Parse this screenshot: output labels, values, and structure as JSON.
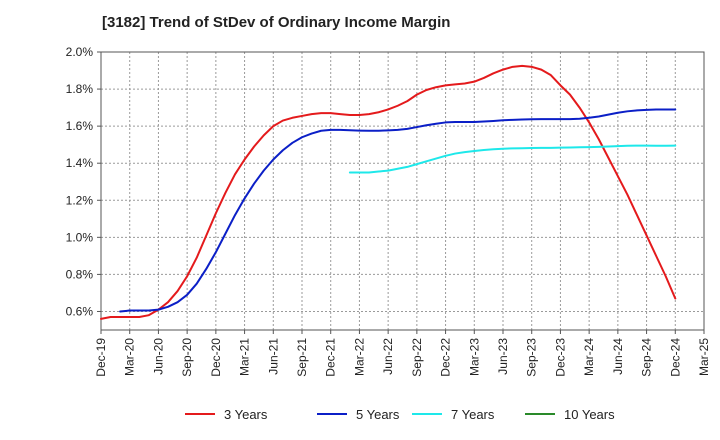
{
  "chart_data": {
    "type": "line",
    "title": "[3182]  Trend of StDev of Ordinary Income Margin",
    "xlabel": "",
    "ylabel": "",
    "x_ticks": [
      "Dec-19",
      "Mar-20",
      "Jun-20",
      "Sep-20",
      "Dec-20",
      "Mar-21",
      "Jun-21",
      "Sep-21",
      "Dec-21",
      "Mar-22",
      "Jun-22",
      "Sep-22",
      "Dec-22",
      "Mar-23",
      "Jun-23",
      "Sep-23",
      "Dec-23",
      "Mar-24",
      "Jun-24",
      "Sep-24",
      "Dec-24",
      "Mar-25"
    ],
    "y_ticks": [
      "0.6%",
      "0.8%",
      "1.0%",
      "1.2%",
      "1.4%",
      "1.6%",
      "1.8%",
      "2.0%"
    ],
    "ylim": [
      0.5,
      2.0
    ],
    "grid": true,
    "legend_position": "bottom",
    "series": [
      {
        "name": "3 Years",
        "color": "#e41a1c",
        "values": [
          [
            "Dec-19",
            0.56
          ],
          [
            "Jan-20",
            0.57
          ],
          [
            "Feb-20",
            0.57
          ],
          [
            "Mar-20",
            0.57
          ],
          [
            "Apr-20",
            0.57
          ],
          [
            "May-20",
            0.58
          ],
          [
            "Jun-20",
            0.61
          ],
          [
            "Jul-20",
            0.65
          ],
          [
            "Aug-20",
            0.71
          ],
          [
            "Sep-20",
            0.79
          ],
          [
            "Oct-20",
            0.89
          ],
          [
            "Nov-20",
            1.01
          ],
          [
            "Dec-20",
            1.13
          ],
          [
            "Jan-21",
            1.24
          ],
          [
            "Feb-21",
            1.34
          ],
          [
            "Mar-21",
            1.42
          ],
          [
            "Apr-21",
            1.49
          ],
          [
            "May-21",
            1.55
          ],
          [
            "Jun-21",
            1.6
          ],
          [
            "Jul-21",
            1.63
          ],
          [
            "Aug-21",
            1.645
          ],
          [
            "Sep-21",
            1.655
          ],
          [
            "Oct-21",
            1.665
          ],
          [
            "Nov-21",
            1.67
          ],
          [
            "Dec-21",
            1.67
          ],
          [
            "Jan-22",
            1.665
          ],
          [
            "Feb-22",
            1.66
          ],
          [
            "Mar-22",
            1.66
          ],
          [
            "Apr-22",
            1.665
          ],
          [
            "May-22",
            1.675
          ],
          [
            "Jun-22",
            1.69
          ],
          [
            "Jul-22",
            1.71
          ],
          [
            "Aug-22",
            1.735
          ],
          [
            "Sep-22",
            1.77
          ],
          [
            "Oct-22",
            1.795
          ],
          [
            "Nov-22",
            1.81
          ],
          [
            "Dec-22",
            1.82
          ],
          [
            "Jan-23",
            1.825
          ],
          [
            "Feb-23",
            1.83
          ],
          [
            "Mar-23",
            1.84
          ],
          [
            "Apr-23",
            1.86
          ],
          [
            "May-23",
            1.885
          ],
          [
            "Jun-23",
            1.905
          ],
          [
            "Jul-23",
            1.92
          ],
          [
            "Aug-23",
            1.925
          ],
          [
            "Sep-23",
            1.92
          ],
          [
            "Oct-23",
            1.905
          ],
          [
            "Nov-23",
            1.875
          ],
          [
            "Dec-23",
            1.82
          ],
          [
            "Jan-24",
            1.77
          ],
          [
            "Feb-24",
            1.7
          ],
          [
            "Mar-24",
            1.62
          ],
          [
            "Apr-24",
            1.53
          ],
          [
            "May-24",
            1.43
          ],
          [
            "Jun-24",
            1.33
          ],
          [
            "Jul-24",
            1.23
          ],
          [
            "Aug-24",
            1.12
          ],
          [
            "Sep-24",
            1.01
          ],
          [
            "Oct-24",
            0.9
          ],
          [
            "Nov-24",
            0.79
          ],
          [
            "Dec-24",
            0.67
          ]
        ]
      },
      {
        "name": "5 Years",
        "color": "#0b1fc7",
        "values": [
          [
            "Feb-20",
            0.6
          ],
          [
            "Mar-20",
            0.605
          ],
          [
            "Apr-20",
            0.605
          ],
          [
            "May-20",
            0.605
          ],
          [
            "Jun-20",
            0.61
          ],
          [
            "Jul-20",
            0.625
          ],
          [
            "Aug-20",
            0.65
          ],
          [
            "Sep-20",
            0.69
          ],
          [
            "Oct-20",
            0.75
          ],
          [
            "Nov-20",
            0.83
          ],
          [
            "Dec-20",
            0.92
          ],
          [
            "Jan-21",
            1.02
          ],
          [
            "Feb-21",
            1.12
          ],
          [
            "Mar-21",
            1.21
          ],
          [
            "Apr-21",
            1.29
          ],
          [
            "May-21",
            1.36
          ],
          [
            "Jun-21",
            1.42
          ],
          [
            "Jul-21",
            1.47
          ],
          [
            "Aug-21",
            1.51
          ],
          [
            "Sep-21",
            1.54
          ],
          [
            "Oct-21",
            1.56
          ],
          [
            "Nov-21",
            1.575
          ],
          [
            "Dec-21",
            1.58
          ],
          [
            "Jan-22",
            1.58
          ],
          [
            "Feb-22",
            1.578
          ],
          [
            "Mar-22",
            1.576
          ],
          [
            "Apr-22",
            1.575
          ],
          [
            "May-22",
            1.575
          ],
          [
            "Jun-22",
            1.577
          ],
          [
            "Jul-22",
            1.58
          ],
          [
            "Aug-22",
            1.585
          ],
          [
            "Sep-22",
            1.595
          ],
          [
            "Oct-22",
            1.605
          ],
          [
            "Nov-22",
            1.613
          ],
          [
            "Dec-22",
            1.62
          ],
          [
            "Jan-23",
            1.622
          ],
          [
            "Feb-23",
            1.622
          ],
          [
            "Mar-23",
            1.622
          ],
          [
            "Apr-23",
            1.625
          ],
          [
            "May-23",
            1.628
          ],
          [
            "Jun-23",
            1.632
          ],
          [
            "Jul-23",
            1.634
          ],
          [
            "Aug-23",
            1.636
          ],
          [
            "Sep-23",
            1.637
          ],
          [
            "Oct-23",
            1.638
          ],
          [
            "Nov-23",
            1.638
          ],
          [
            "Dec-23",
            1.638
          ],
          [
            "Jan-24",
            1.638
          ],
          [
            "Feb-24",
            1.64
          ],
          [
            "Mar-24",
            1.645
          ],
          [
            "Apr-24",
            1.652
          ],
          [
            "May-24",
            1.662
          ],
          [
            "Jun-24",
            1.672
          ],
          [
            "Jul-24",
            1.68
          ],
          [
            "Aug-24",
            1.685
          ],
          [
            "Sep-24",
            1.688
          ],
          [
            "Oct-24",
            1.69
          ],
          [
            "Nov-24",
            1.69
          ],
          [
            "Dec-24",
            1.69
          ]
        ]
      },
      {
        "name": "7 Years",
        "color": "#1ee8ea",
        "values": [
          [
            "Feb-22",
            1.35
          ],
          [
            "Mar-22",
            1.35
          ],
          [
            "Apr-22",
            1.35
          ],
          [
            "May-22",
            1.355
          ],
          [
            "Jun-22",
            1.36
          ],
          [
            "Jul-22",
            1.37
          ],
          [
            "Aug-22",
            1.38
          ],
          [
            "Sep-22",
            1.395
          ],
          [
            "Oct-22",
            1.41
          ],
          [
            "Nov-22",
            1.425
          ],
          [
            "Dec-22",
            1.44
          ],
          [
            "Jan-23",
            1.452
          ],
          [
            "Feb-23",
            1.46
          ],
          [
            "Mar-23",
            1.466
          ],
          [
            "Apr-23",
            1.471
          ],
          [
            "May-23",
            1.475
          ],
          [
            "Jun-23",
            1.478
          ],
          [
            "Jul-23",
            1.48
          ],
          [
            "Aug-23",
            1.481
          ],
          [
            "Sep-23",
            1.482
          ],
          [
            "Oct-23",
            1.483
          ],
          [
            "Nov-23",
            1.483
          ],
          [
            "Dec-23",
            1.484
          ],
          [
            "Jan-24",
            1.485
          ],
          [
            "Feb-24",
            1.486
          ],
          [
            "Mar-24",
            1.487
          ],
          [
            "Apr-24",
            1.488
          ],
          [
            "May-24",
            1.49
          ],
          [
            "Jun-24",
            1.492
          ],
          [
            "Jul-24",
            1.494
          ],
          [
            "Aug-24",
            1.495
          ],
          [
            "Sep-24",
            1.495
          ],
          [
            "Oct-24",
            1.494
          ],
          [
            "Nov-24",
            1.494
          ],
          [
            "Dec-24",
            1.495
          ]
        ]
      },
      {
        "name": "10 Years",
        "color": "#2a8a2a",
        "values": []
      }
    ]
  }
}
